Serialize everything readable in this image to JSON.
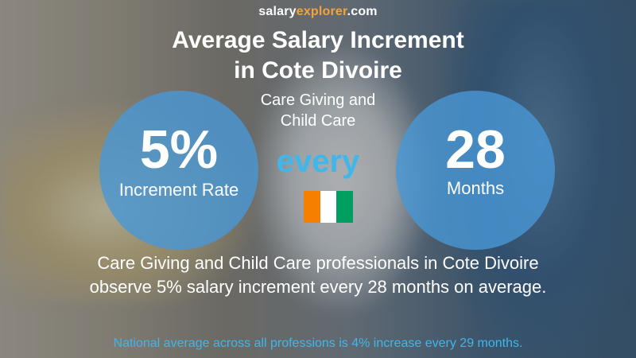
{
  "brand": {
    "part1": "salary",
    "part2": "explorer",
    "part3": ".com"
  },
  "title": {
    "line1": "Average Salary Increment",
    "line2": "in Cote Divoire"
  },
  "subtitle": {
    "line1": "Care Giving and",
    "line2": "Child Care"
  },
  "increment": {
    "value": "5%",
    "label": "Increment Rate"
  },
  "connector": "every",
  "period": {
    "value": "28",
    "label": "Months"
  },
  "flag": {
    "colors": [
      "#f77f00",
      "#ffffff",
      "#009e60"
    ]
  },
  "summary": {
    "line1": "Care Giving and Child Care professionals in Cote Divoire",
    "line2": "observe 5% salary increment every 28 months on average."
  },
  "footer": "National average across all professions is 4% increase every 29 months.",
  "colors": {
    "accent_blue": "#3fb7ea",
    "brand_orange": "#f2a33a",
    "circle": "#4997d6"
  }
}
